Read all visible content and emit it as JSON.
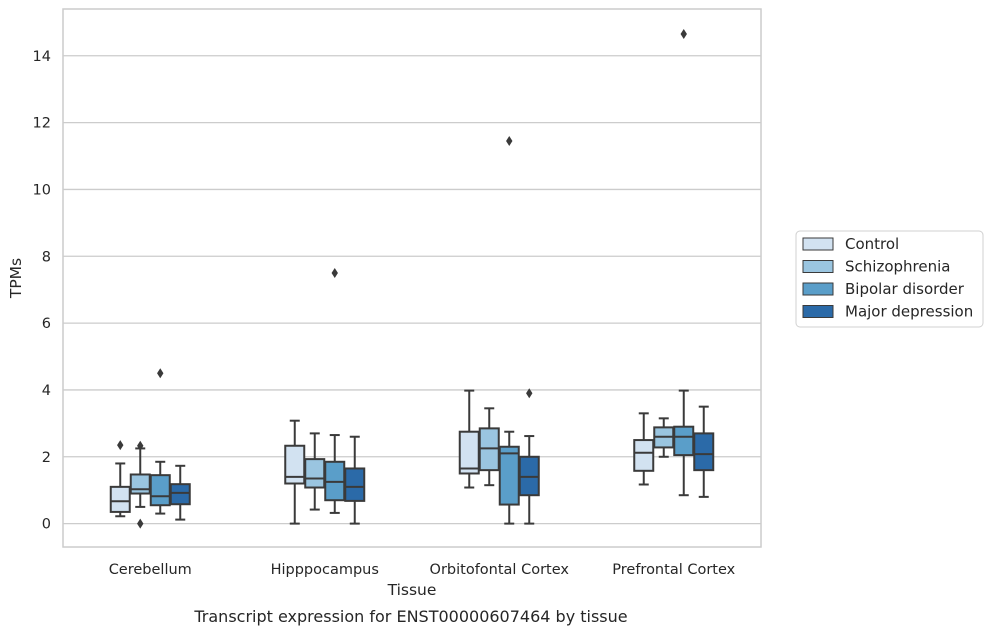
{
  "chart_data": {
    "type": "box",
    "caption": "Transcript expression for ENST00000607464 by tissue",
    "xlabel": "Tissue",
    "ylabel": "TPMs",
    "ylim": [
      -0.7,
      15.4
    ],
    "yticks": [
      0,
      2,
      4,
      6,
      8,
      10,
      12,
      14
    ],
    "grid": "horizontal",
    "legend_position": "right",
    "categories": [
      "Cerebellum",
      "Hipppocampus",
      "Orbitofontal Cortex",
      "Prefrontal Cortex"
    ],
    "series": [
      {
        "name": "Control",
        "color": "#d2e2f1",
        "boxes": [
          {
            "whislo": 0.22,
            "q1": 0.35,
            "med": 0.67,
            "q3": 1.1,
            "whishi": 1.8,
            "fliers": [
              2.35
            ]
          },
          {
            "whislo": 0.0,
            "q1": 1.2,
            "med": 1.4,
            "q3": 2.33,
            "whishi": 3.08,
            "fliers": []
          },
          {
            "whislo": 1.08,
            "q1": 1.5,
            "med": 1.65,
            "q3": 2.75,
            "whishi": 3.98,
            "fliers": []
          },
          {
            "whislo": 1.17,
            "q1": 1.58,
            "med": 2.12,
            "q3": 2.5,
            "whishi": 3.3,
            "fliers": []
          }
        ]
      },
      {
        "name": "Schizophrenia",
        "color": "#9ac5e0",
        "boxes": [
          {
            "whislo": 0.5,
            "q1": 0.9,
            "med": 1.03,
            "q3": 1.47,
            "whishi": 2.25,
            "fliers": [
              0.0,
              2.33
            ]
          },
          {
            "whislo": 0.42,
            "q1": 1.08,
            "med": 1.35,
            "q3": 1.93,
            "whishi": 2.7,
            "fliers": []
          },
          {
            "whislo": 1.15,
            "q1": 1.6,
            "med": 2.25,
            "q3": 2.85,
            "whishi": 3.45,
            "fliers": []
          },
          {
            "whislo": 2.0,
            "q1": 2.28,
            "med": 2.6,
            "q3": 2.88,
            "whishi": 3.15,
            "fliers": []
          }
        ]
      },
      {
        "name": "Bipolar disorder",
        "color": "#5a9ec9",
        "boxes": [
          {
            "whislo": 0.3,
            "q1": 0.55,
            "med": 0.82,
            "q3": 1.45,
            "whishi": 1.85,
            "fliers": [
              4.5
            ]
          },
          {
            "whislo": 0.32,
            "q1": 0.7,
            "med": 1.25,
            "q3": 1.85,
            "whishi": 2.65,
            "fliers": [
              7.5
            ]
          },
          {
            "whislo": 0.0,
            "q1": 0.57,
            "med": 2.1,
            "q3": 2.3,
            "whishi": 2.75,
            "fliers": [
              11.45
            ]
          },
          {
            "whislo": 0.85,
            "q1": 2.05,
            "med": 2.6,
            "q3": 2.9,
            "whishi": 3.98,
            "fliers": [
              14.65
            ]
          }
        ]
      },
      {
        "name": "Major depression",
        "color": "#2b6aa8",
        "boxes": [
          {
            "whislo": 0.12,
            "q1": 0.58,
            "med": 0.92,
            "q3": 1.18,
            "whishi": 1.73,
            "fliers": []
          },
          {
            "whislo": 0.0,
            "q1": 0.68,
            "med": 1.1,
            "q3": 1.65,
            "whishi": 2.6,
            "fliers": []
          },
          {
            "whislo": 0.0,
            "q1": 0.85,
            "med": 1.4,
            "q3": 2.0,
            "whishi": 2.62,
            "fliers": [
              3.9
            ]
          },
          {
            "whislo": 0.8,
            "q1": 1.6,
            "med": 2.08,
            "q3": 2.7,
            "whishi": 3.5,
            "fliers": []
          }
        ]
      }
    ]
  }
}
